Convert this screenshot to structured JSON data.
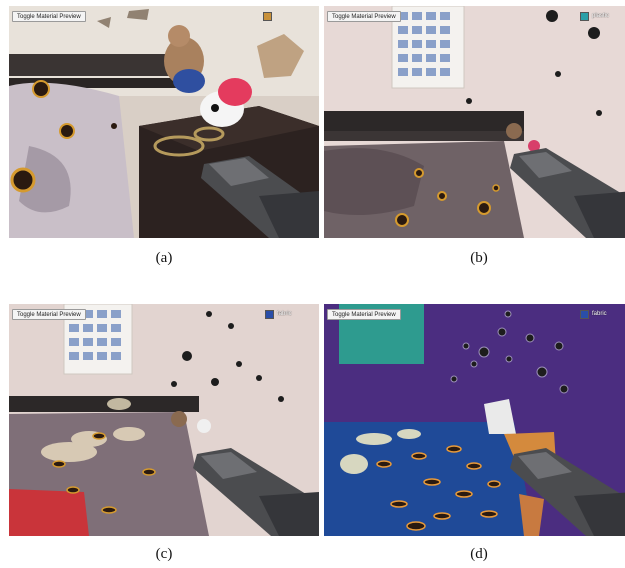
{
  "panels": [
    {
      "id": "a",
      "caption": "(a)",
      "toggle_label": "Toggle Material Preview",
      "material_label": "",
      "material_color": "#c8913a"
    },
    {
      "id": "b",
      "caption": "(b)",
      "toggle_label": "Toggle Material Preview",
      "material_label": "plastic",
      "material_color": "#2aa0a8"
    },
    {
      "id": "c",
      "caption": "(c)",
      "toggle_label": "Toggle Material Preview",
      "material_label": "fabric",
      "material_color": "#2a4ea8"
    },
    {
      "id": "d",
      "caption": "(d)",
      "toggle_label": "Toggle Material Preview",
      "material_label": "fabric",
      "material_color": "#2a4ea8"
    }
  ],
  "icons": [
    "shotgun-icon",
    "bullet-hole-icon",
    "material-swatch-icon"
  ]
}
